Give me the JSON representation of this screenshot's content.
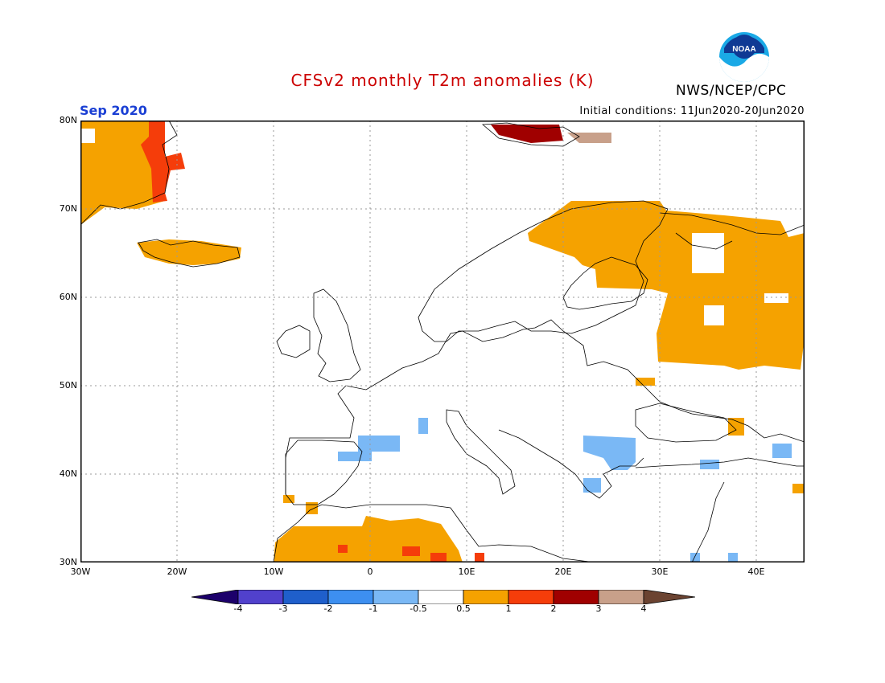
{
  "header": {
    "title": "CFSv2 monthly T2m anomalies (K)",
    "agency": "NWS/NCEP/CPC",
    "logo_text": "NOAA",
    "valid_month": "Sep 2020",
    "initial_conditions": "Initial conditions: 11Jun2020-20Jun2020"
  },
  "colors": {
    "title": "#cc0000",
    "month": "#1a3fd4",
    "frame": "#000000",
    "gridline": "#999999",
    "coastline": "#000000"
  },
  "map": {
    "lat_labels": [
      "80N",
      "70N",
      "60N",
      "50N",
      "40N",
      "30N"
    ],
    "lon_labels": [
      "30W",
      "20W",
      "10W",
      "0",
      "10E",
      "20E",
      "30E",
      "40E"
    ]
  },
  "colorbar": {
    "labels": [
      "-4",
      "-3",
      "-2",
      "-1",
      "-0.5",
      "0.5",
      "1",
      "2",
      "3",
      "4"
    ],
    "colors": [
      "#1c006b",
      "#5141cc",
      "#1f5fcb",
      "#3d8ff0",
      "#7ab8f5",
      "#ffffff",
      "#f5a200",
      "#f53d0a",
      "#a00000",
      "#c8a08a",
      "#6b4331"
    ]
  },
  "anomaly_regions": [
    {
      "region": "Greenland east coast",
      "category": "0.5 to 1"
    },
    {
      "region": "Greenland east coast",
      "category": "1 to 2"
    },
    {
      "region": "Iceland",
      "category": "0.5 to 1"
    },
    {
      "region": "Svalbard",
      "category": "2 to 3"
    },
    {
      "region": "Svalbard",
      "category": "3 to 4"
    },
    {
      "region": "Northern Scandinavia and Finland",
      "category": "0.5 to 1"
    },
    {
      "region": "Western Russia",
      "category": "0.5 to 1"
    },
    {
      "region": "Northwest Africa",
      "category": "0.5 to 1"
    },
    {
      "region": "Northwest Africa",
      "category": "1 to 2"
    },
    {
      "region": "Northern Spain and Pyrenees",
      "category": "-1 to -0.5"
    },
    {
      "region": "Balkans and Aegean",
      "category": "-1 to -0.5"
    },
    {
      "region": "Caucasus",
      "category": "0.5 to 1"
    },
    {
      "region": "Caucasus",
      "category": "-1 to -0.5"
    }
  ]
}
